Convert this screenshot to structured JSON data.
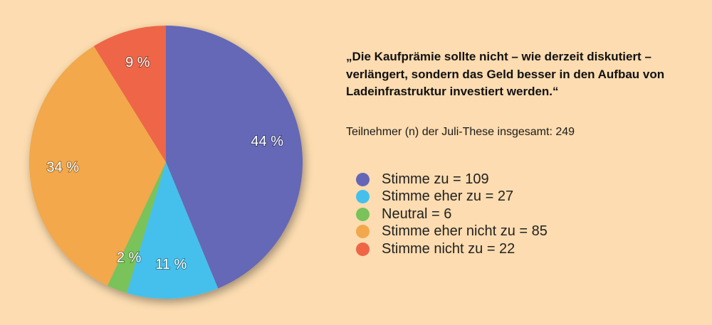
{
  "quote": "„Die Kaufprämie sollte nicht – wie derzeit diskutiert – verlängert, sondern das Geld besser in den Aufbau von Ladeinfrastruktur investiert werden.“",
  "participants": "Teilnehmer (n) der Juli-These insgesamt: 249",
  "chart_data": {
    "type": "pie",
    "start": "12 o'clock, clockwise",
    "slices": [
      {
        "legend": "Stimme zu = 109",
        "value": 109,
        "label": "44 %",
        "color": "#6567b6"
      },
      {
        "legend": "Stimme eher zu = 27",
        "value": 27,
        "label": "11 %",
        "color": "#45c0ec"
      },
      {
        "legend": "Neutral = 6",
        "value": 6,
        "label": "2 %",
        "color": "#79c35a"
      },
      {
        "legend": "Stimme eher nicht zu = 85",
        "value": 85,
        "label": "34 %",
        "color": "#f2a84c"
      },
      {
        "legend": "Stimme nicht zu = 22",
        "value": 22,
        "label": "9 %",
        "color": "#ee6646"
      }
    ]
  }
}
